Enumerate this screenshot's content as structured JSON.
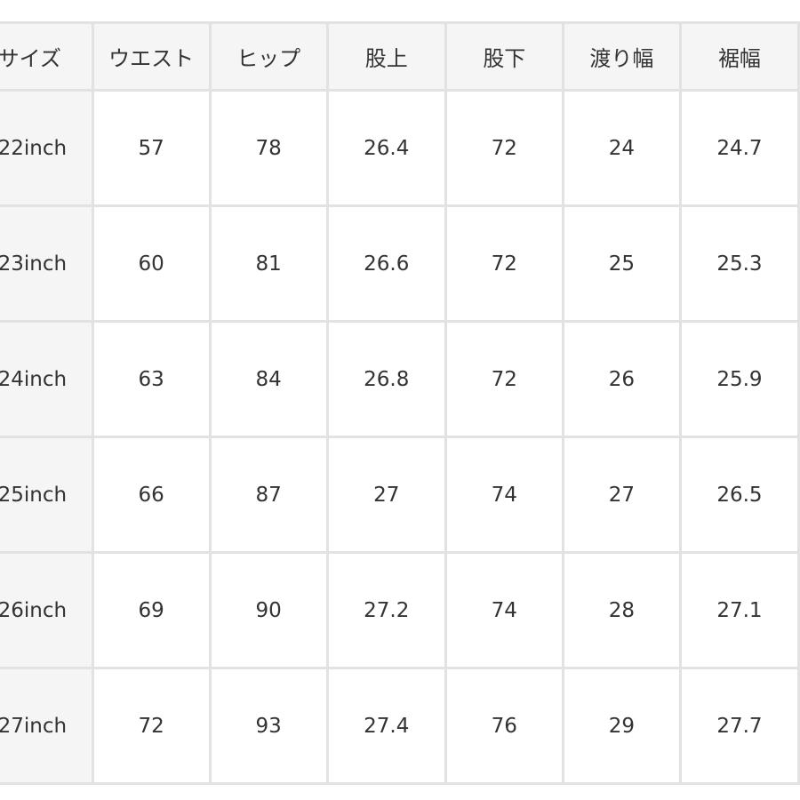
{
  "headers": [
    "サイズ",
    "ウエスト",
    "ヒップ",
    "股上",
    "股下",
    "渡り幅",
    "裾幅"
  ],
  "rows": [
    [
      "22inch",
      "57",
      "78",
      "26.4",
      "72",
      "24",
      "24.7"
    ],
    [
      "23inch",
      "60",
      "81",
      "26.6",
      "72",
      "25",
      "25.3"
    ],
    [
      "24inch",
      "63",
      "84",
      "26.8",
      "72",
      "26",
      "25.9"
    ],
    [
      "25inch",
      "66",
      "87",
      "27",
      "74",
      "27",
      "26.5"
    ],
    [
      "26inch",
      "69",
      "90",
      "27.2",
      "74",
      "28",
      "27.1"
    ],
    [
      "27inch",
      "72",
      "93",
      "27.4",
      "76",
      "29",
      "27.7"
    ]
  ]
}
